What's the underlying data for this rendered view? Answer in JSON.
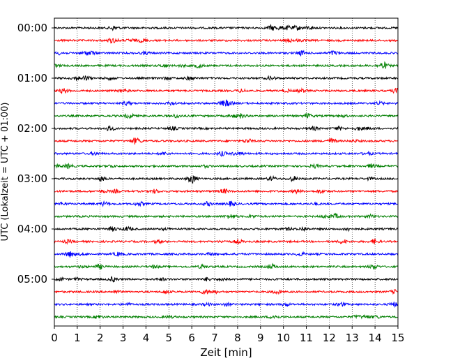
{
  "chart_data": {
    "type": "line",
    "title": "",
    "xlabel": "Zeit  [min]",
    "ylabel": "UTC (Lokalzeit = UTC + 01:00)",
    "xlim": [
      0,
      15
    ],
    "xticks": [
      0,
      1,
      2,
      3,
      4,
      5,
      6,
      7,
      8,
      9,
      10,
      11,
      12,
      13,
      14,
      15
    ],
    "ytick_labels": [
      "00:00",
      "01:00",
      "02:00",
      "03:00",
      "04:00",
      "05:00"
    ],
    "row_interval_min": 15,
    "row_count": 24,
    "row_colors": [
      "#000000",
      "#ff0000",
      "#0000ff",
      "#007f00"
    ],
    "grid": "vertical-dotted",
    "legend": "none"
  }
}
